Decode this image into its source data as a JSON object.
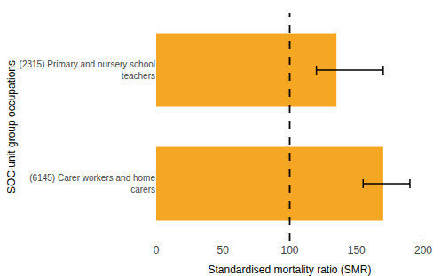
{
  "chart_data": {
    "type": "bar",
    "orientation": "horizontal",
    "categories": [
      "(2315) Primary and nursery school\nteachers",
      "(6145) Carer workers and home\ncarers"
    ],
    "values": [
      135,
      170
    ],
    "error_low": [
      120,
      155
    ],
    "error_high": [
      170,
      190
    ],
    "color": "#F5A623",
    "vline": 100,
    "xlabel": "Standardised mortality ratio (SMR)",
    "ylabel": "SOC unit group occupations",
    "xlim": [
      0,
      200
    ],
    "xticks": [
      0,
      50,
      100,
      150,
      200
    ],
    "grid": false
  }
}
